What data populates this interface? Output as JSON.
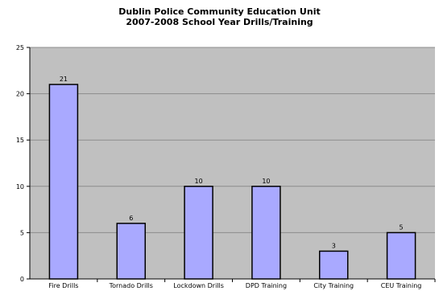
{
  "chart_data": {
    "type": "bar",
    "title": [
      "Dublin Police Community Education Unit",
      "2007-2008 School Year Drills/Training"
    ],
    "xlabel": "",
    "ylabel": "",
    "categories": [
      "Fire Drills",
      "Tornado Drills",
      "Lockdown Drills",
      "DPD Training",
      "City Training",
      "CEU Training"
    ],
    "values": [
      21,
      6,
      10,
      10,
      3,
      5
    ],
    "data_labels": [
      "21",
      "6",
      "10",
      "10",
      "3",
      "5"
    ],
    "ylim": [
      0,
      25
    ],
    "yticks": [
      0,
      5,
      10,
      15,
      20,
      25
    ],
    "grid": true,
    "legend": "none",
    "colors": {
      "plot_background": "#c0c0c0",
      "bar_fill": "#a9a9ff",
      "bar_stroke": "#000000",
      "grid": "#8c8c8c"
    }
  }
}
